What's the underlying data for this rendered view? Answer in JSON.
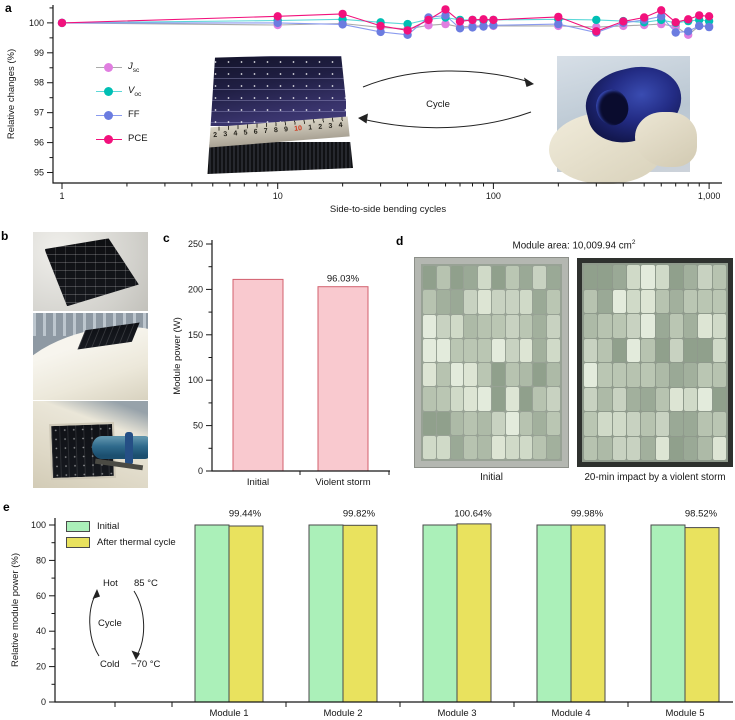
{
  "panels": {
    "a": {
      "label": "a",
      "cycle_label": "Cycle",
      "ruler_numbers": [
        "1",
        "2",
        "3",
        "4",
        "5",
        "6",
        "7",
        "8",
        "9",
        "10",
        "1",
        "2",
        "3",
        "4",
        "5"
      ]
    },
    "b": {
      "label": "b"
    },
    "c": {
      "label": "c"
    },
    "d": {
      "label": "d",
      "title_main": "Module area: 10,009.94 cm",
      "title_sup": "2",
      "captions": [
        "Initial",
        "20-min impact by a violent storm"
      ]
    },
    "e": {
      "label": "e",
      "annotation": {
        "hot": "Hot",
        "hot_temp": "85 °C",
        "cycle": "Cycle",
        "cold": "Cold",
        "cold_temp": "−70 °C"
      }
    }
  },
  "chart_data": [
    {
      "id": "a",
      "type": "line",
      "xlabel": "Side-to-side bending cycles",
      "ylabel": "Relative changes (%)",
      "xscale": "log",
      "xlim": [
        0.9,
        1150
      ],
      "ylim": [
        94.65,
        100.6
      ],
      "xticks": [
        1,
        10,
        100,
        1000
      ],
      "xtick_labels": [
        "1",
        "10",
        "100",
        "1,000"
      ],
      "yticks": [
        95,
        96,
        97,
        98,
        99,
        100
      ],
      "x": [
        1,
        10,
        20,
        30,
        40,
        50,
        60,
        70,
        80,
        90,
        100,
        200,
        300,
        400,
        500,
        600,
        700,
        800,
        900,
        1000
      ],
      "series": [
        {
          "key": "jsc",
          "name": "Jsc",
          "marker": "#e07ee0",
          "line": "#ababab",
          "values": [
            100,
            99.93,
            99.98,
            99.85,
            99.8,
            99.92,
            99.96,
            99.86,
            99.9,
            99.9,
            99.9,
            99.9,
            99.86,
            99.9,
            99.93,
            99.96,
            99.88,
            99.6,
            99.9,
            99.9
          ]
        },
        {
          "key": "voc",
          "name": "Voc",
          "marker": "#00bfb4",
          "line": "#5cd8d8",
          "values": [
            100,
            100.08,
            100.12,
            100.02,
            99.96,
            100.12,
            100.18,
            100.1,
            100.1,
            100.08,
            100.1,
            100.12,
            100.1,
            100.06,
            100.02,
            100.1,
            100.0,
            100.06,
            100.1,
            100.06
          ]
        },
        {
          "key": "ff",
          "name": "FF",
          "marker": "#6b7ce0",
          "line": "#8a9bef",
          "values": [
            100,
            100.0,
            99.95,
            99.7,
            99.6,
            100.18,
            100.25,
            99.82,
            99.85,
            99.88,
            99.92,
            99.96,
            99.68,
            100.0,
            100.1,
            100.22,
            99.68,
            99.72,
            99.9,
            99.86
          ]
        },
        {
          "key": "pce",
          "name": "PCE",
          "marker": "#f2117c",
          "line": "#f2117c",
          "values": [
            100,
            100.22,
            100.3,
            99.9,
            99.75,
            100.1,
            100.45,
            100.05,
            100.1,
            100.12,
            100.1,
            100.2,
            99.72,
            100.05,
            100.18,
            100.42,
            100.02,
            100.12,
            100.25,
            100.22
          ]
        }
      ],
      "legend": [
        {
          "it": "J",
          "sub": "sc"
        },
        {
          "it": "V",
          "sub": "oc"
        },
        {
          "txt": "FF"
        },
        {
          "txt": "PCE"
        }
      ]
    },
    {
      "id": "c",
      "type": "bar",
      "ylabel": "Module power (W)",
      "categories": [
        "Initial",
        "Violent storm"
      ],
      "values": [
        211,
        203
      ],
      "annotation": {
        "text": "96.03%",
        "on": 1
      },
      "ylim": [
        0,
        250
      ],
      "yticks": [
        0,
        50,
        100,
        150,
        200,
        250
      ],
      "bar_fill": "#f9c9cf",
      "bar_border": "#d2606e"
    },
    {
      "id": "e",
      "type": "grouped-bar",
      "ylabel": "Relative module power (%)",
      "categories": [
        "Module 1",
        "Module 2",
        "Module 3",
        "Module 4",
        "Module 5"
      ],
      "series": [
        {
          "name": "Initial",
          "fill": "#abf0b9",
          "border": "#4a4a4a",
          "values": [
            100,
            100,
            100,
            100,
            100
          ]
        },
        {
          "name": "After thermal cycle",
          "fill": "#e9e25e",
          "border": "#4a4a4a",
          "values": [
            99.44,
            99.82,
            100.64,
            99.98,
            98.52
          ]
        }
      ],
      "annotations": [
        "99.44%",
        "99.82%",
        "100.64%",
        "99.98%",
        "98.52%"
      ],
      "ylim": [
        0,
        104
      ],
      "yticks": [
        0,
        20,
        40,
        60,
        80,
        100
      ]
    }
  ]
}
